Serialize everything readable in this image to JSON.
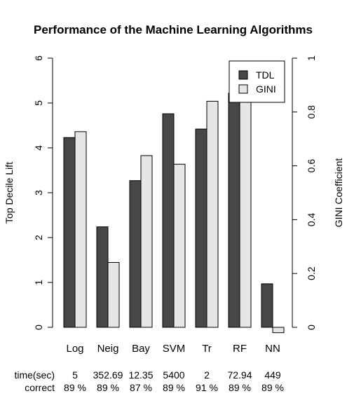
{
  "chart_data": {
    "type": "bar",
    "title": "Performance of the Machine Learning Algorithms",
    "categories": [
      "Log",
      "Neig",
      "Bay",
      "SVM",
      "Tr",
      "RF",
      "NN"
    ],
    "series": [
      {
        "name": "TDL",
        "axis": "left",
        "color": "#474747",
        "values": [
          4.23,
          2.24,
          3.27,
          4.76,
          4.42,
          5.22,
          0.97
        ]
      },
      {
        "name": "GINI",
        "axis": "right",
        "color": "#e6e6e6",
        "values": [
          0.727,
          0.241,
          0.638,
          0.606,
          0.84,
          0.9,
          -0.02
        ]
      }
    ],
    "ylabel_left": "Top Decile Lift",
    "ylabel_right": "GINI Coefficient",
    "ylim_left": [
      0,
      6
    ],
    "ylim_right": [
      0,
      1
    ],
    "yticks_left": [
      "0",
      "1",
      "2",
      "3",
      "4",
      "5",
      "6"
    ],
    "yticks_right": [
      "0",
      "0.2",
      "0.4",
      "0.6",
      "0.8",
      "1"
    ],
    "legend_position": "top-right",
    "grid": false
  },
  "info_rows": [
    {
      "label": "time(sec)",
      "values": [
        "5",
        "352.69",
        "12.35",
        "5400",
        "2",
        "72.94",
        "449"
      ]
    },
    {
      "label": "correct",
      "values": [
        "89 %",
        "89 %",
        "87 %",
        "89 %",
        "91 %",
        "89 %",
        "89 %"
      ]
    }
  ]
}
